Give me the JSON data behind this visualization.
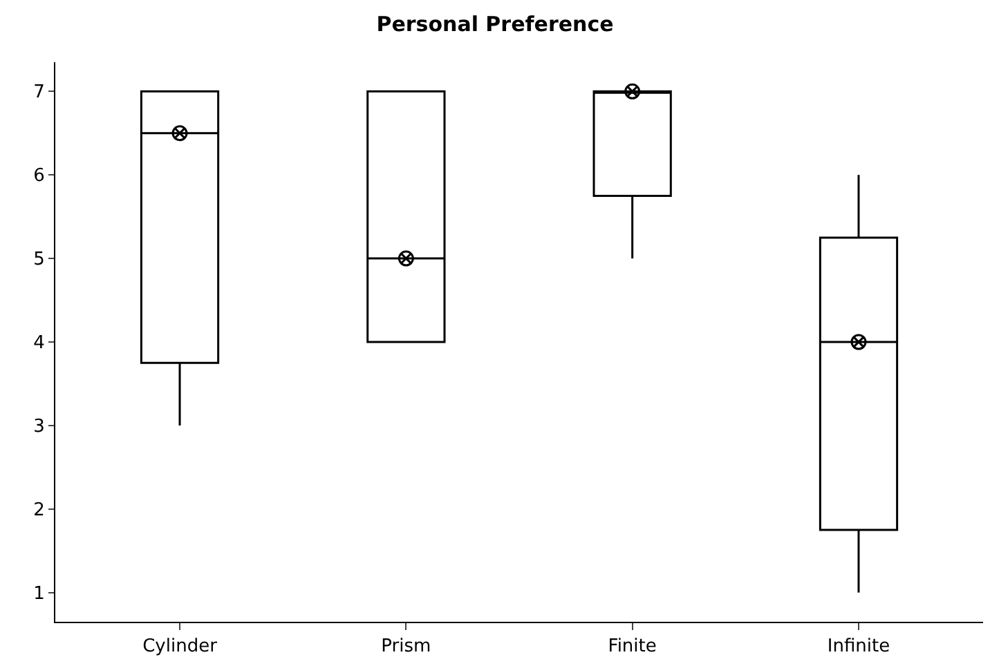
{
  "chart_data": {
    "type": "box",
    "title": "Personal Preference",
    "categories": [
      "Cylinder",
      "Prism",
      "Finite",
      "Infinite"
    ],
    "boxes": [
      {
        "low": 3,
        "q1": 3.75,
        "median": 6.5,
        "q3": 7,
        "high": 7,
        "mean": 6.5
      },
      {
        "low": 4,
        "q1": 4,
        "median": 5,
        "q3": 7,
        "high": 7,
        "mean": 5
      },
      {
        "low": 5,
        "q1": 5.75,
        "median": 7,
        "q3": 7,
        "high": 7,
        "mean": 7
      },
      {
        "low": 1,
        "q1": 1.75,
        "median": 4,
        "q3": 5.25,
        "high": 6,
        "mean": 4
      }
    ],
    "color": "#000000",
    "ylim": [
      0.65,
      7.35
    ],
    "yticks": [
      1,
      2,
      3,
      4,
      5,
      6,
      7
    ]
  }
}
